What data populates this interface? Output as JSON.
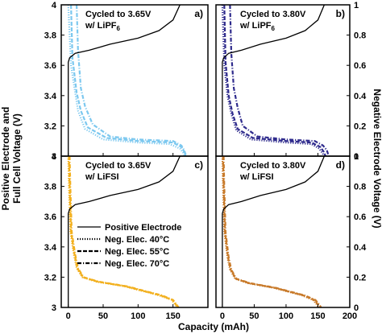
{
  "figure": {
    "xlabel": "Capacity (mAh)",
    "ylabel_left_line1": "Positive Electrode and",
    "ylabel_left_line2": "Full Cell Voltage (V)",
    "ylabel_right": "Negative Electrode Voltage (V)"
  },
  "legend": {
    "items": [
      {
        "label": "Positive Electrode",
        "style": "solid"
      },
      {
        "label": "Neg. Elec. 40°C",
        "style": "dotted"
      },
      {
        "label": "Neg. Elec. 55°C",
        "style": "dashed"
      },
      {
        "label": "Neg. Elec. 70°C",
        "style": "dashdot"
      }
    ]
  },
  "chart_data": [
    {
      "type": "line",
      "panel": "a)",
      "title_line1": "Cycled to 3.65V",
      "title_line2_prefix": "w/ LiPF",
      "title_line2_sub": "6",
      "color": "#7cc8ef",
      "xlim": [
        -10,
        200
      ],
      "ylim": [
        3.0,
        4.0
      ],
      "y2lim": [
        0,
        1
      ],
      "series": [
        {
          "style": "dotted",
          "x": [
            0,
            4,
            10,
            14,
            24,
            50,
            100,
            145,
            160,
            165,
            167
          ],
          "y": [
            4.0,
            3.6,
            3.42,
            3.3,
            3.18,
            3.11,
            3.09,
            3.08,
            3.05,
            3.02,
            3.0
          ]
        },
        {
          "style": "dashed",
          "x": [
            4,
            6,
            12,
            18,
            28,
            55,
            100,
            150,
            162,
            166,
            168
          ],
          "y": [
            4.0,
            3.65,
            3.42,
            3.3,
            3.19,
            3.12,
            3.1,
            3.09,
            3.06,
            3.03,
            3.0
          ]
        },
        {
          "style": "dashdot",
          "x": [
            12,
            14,
            18,
            24,
            35,
            60,
            100,
            150,
            162,
            166,
            169
          ],
          "y": [
            4.0,
            3.7,
            3.45,
            3.33,
            3.21,
            3.13,
            3.11,
            3.1,
            3.07,
            3.04,
            3.0
          ]
        }
      ]
    },
    {
      "type": "line",
      "panel": "b)",
      "title_line1": "Cycled to 3.80V",
      "title_line2_prefix": "w/ LiPF",
      "title_line2_sub": "6",
      "color": "#2e2a8c",
      "xlim": [
        -10,
        200
      ],
      "ylim": [
        3.0,
        4.0
      ],
      "y2lim": [
        0,
        1
      ],
      "series": [
        {
          "style": "dotted",
          "x": [
            0,
            3,
            8,
            14,
            22,
            45,
            100,
            140,
            152,
            157,
            160
          ],
          "y": [
            4.0,
            3.6,
            3.4,
            3.28,
            3.17,
            3.11,
            3.09,
            3.08,
            3.05,
            3.02,
            3.0
          ]
        },
        {
          "style": "dashed",
          "x": [
            3,
            5,
            10,
            16,
            24,
            48,
            100,
            140,
            154,
            159,
            162
          ],
          "y": [
            4.0,
            3.62,
            3.4,
            3.28,
            3.18,
            3.12,
            3.1,
            3.09,
            3.06,
            3.03,
            3.0
          ]
        },
        {
          "style": "dashdot",
          "x": [
            12,
            14,
            18,
            24,
            32,
            55,
            100,
            145,
            158,
            164,
            167
          ],
          "y": [
            4.0,
            3.68,
            3.45,
            3.32,
            3.2,
            3.13,
            3.11,
            3.1,
            3.07,
            3.04,
            3.0
          ]
        }
      ]
    },
    {
      "type": "line",
      "panel": "c)",
      "title_line1": "Cycled to 3.65V",
      "title_line2_prefix": "w/ LiFSI",
      "title_line2_sub": "",
      "color": "#f2b01e",
      "xlim": [
        -10,
        200
      ],
      "ylim": [
        3.0,
        4.0
      ],
      "y2lim": [
        0,
        1
      ],
      "series": [
        {
          "style": "dotted",
          "x": [
            0,
            1,
            3,
            8,
            12,
            20,
            40,
            80,
            130,
            148,
            153,
            156
          ],
          "y": [
            4.0,
            3.8,
            3.5,
            3.35,
            3.26,
            3.2,
            3.17,
            3.14,
            3.08,
            3.05,
            3.02,
            3.0
          ]
        },
        {
          "style": "dashed",
          "x": [
            1,
            2,
            4,
            9,
            13,
            21,
            42,
            82,
            132,
            149,
            154,
            157
          ],
          "y": [
            4.0,
            3.8,
            3.5,
            3.35,
            3.26,
            3.2,
            3.17,
            3.14,
            3.08,
            3.05,
            3.02,
            3.0
          ]
        },
        {
          "style": "dashdot",
          "x": [
            2,
            3,
            5,
            10,
            14,
            22,
            44,
            84,
            134,
            150,
            155,
            158
          ],
          "y": [
            4.0,
            3.8,
            3.5,
            3.35,
            3.26,
            3.2,
            3.17,
            3.14,
            3.08,
            3.05,
            3.02,
            3.0
          ]
        }
      ]
    },
    {
      "type": "line",
      "panel": "d)",
      "title_line1": "Cycled to 3.80V",
      "title_line2_prefix": "w/ LiFSI",
      "title_line2_sub": "",
      "color": "#c87a2a",
      "xlim": [
        -10,
        200
      ],
      "ylim": [
        3.0,
        4.0
      ],
      "y2lim": [
        0,
        1
      ],
      "series": [
        {
          "style": "dotted",
          "x": [
            0,
            1,
            3,
            8,
            12,
            20,
            40,
            80,
            125,
            142,
            148,
            151
          ],
          "y": [
            4.0,
            3.8,
            3.5,
            3.33,
            3.25,
            3.19,
            3.16,
            3.13,
            3.08,
            3.05,
            3.02,
            3.0
          ]
        },
        {
          "style": "dashed",
          "x": [
            1,
            2,
            4,
            9,
            13,
            21,
            42,
            82,
            127,
            144,
            150,
            153
          ],
          "y": [
            4.0,
            3.8,
            3.5,
            3.33,
            3.25,
            3.19,
            3.16,
            3.13,
            3.08,
            3.05,
            3.02,
            3.0
          ]
        },
        {
          "style": "dashdot",
          "x": [
            2,
            3,
            5,
            10,
            14,
            22,
            44,
            84,
            129,
            146,
            152,
            155
          ],
          "y": [
            4.0,
            3.8,
            3.5,
            3.33,
            3.25,
            3.19,
            3.16,
            3.13,
            3.08,
            3.05,
            3.02,
            3.0
          ]
        }
      ]
    }
  ],
  "positive_electrode": {
    "style": "solid",
    "color": "#000000",
    "x": [
      0,
      0,
      2,
      10,
      30,
      60,
      100,
      130,
      150,
      160
    ],
    "y": [
      3.0,
      3.62,
      3.65,
      3.68,
      3.7,
      3.74,
      3.78,
      3.83,
      3.9,
      4.0
    ]
  },
  "ticks": {
    "x_top": [
      "0",
      "50",
      "100",
      "150"
    ],
    "x_bottom": [
      "0",
      "50",
      "100",
      "150",
      "200"
    ],
    "y_left": [
      "3",
      "3.2",
      "3.4",
      "3.6",
      "3.8",
      "4"
    ],
    "y_right": [
      "0",
      "0.2",
      "0.4",
      "0.6",
      "0.8",
      "1"
    ]
  }
}
